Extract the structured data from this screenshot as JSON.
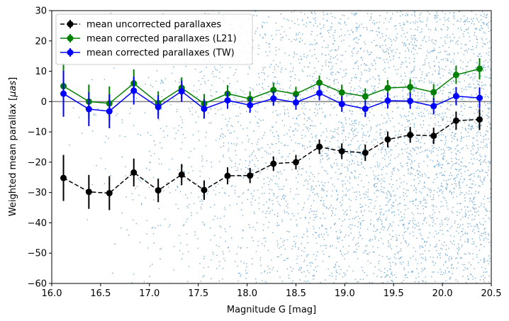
{
  "chart_data": {
    "type": "scatter",
    "xlabel": "Magnitude G [mag]",
    "ylabel_prefix": "Weighted mean parallax [",
    "ylabel_unit": "μas",
    "ylabel_suffix": "]",
    "xlim": [
      16.0,
      20.5
    ],
    "ylim": [
      -60,
      30
    ],
    "xticks": [
      16.0,
      16.5,
      17.0,
      17.5,
      18.0,
      18.5,
      19.0,
      19.5,
      20.0,
      20.5
    ],
    "xtick_labels": [
      "16.0",
      "16.5",
      "17.0",
      "17.5",
      "18.0",
      "18.5",
      "19.0",
      "19.5",
      "20.0",
      "20.5"
    ],
    "yticks": [
      -60,
      -50,
      -40,
      -30,
      -20,
      -10,
      0,
      10,
      20,
      30
    ],
    "ytick_labels": [
      "−60",
      "−50",
      "−40",
      "−30",
      "−20",
      "−10",
      "0",
      "10",
      "20",
      "30"
    ],
    "reference_line_y": 0,
    "x": [
      16.12,
      16.38,
      16.59,
      16.84,
      17.09,
      17.33,
      17.56,
      17.8,
      18.03,
      18.27,
      18.5,
      18.74,
      18.97,
      19.21,
      19.44,
      19.67,
      19.91,
      20.14,
      20.38
    ],
    "series": [
      {
        "name": "mean uncorrected parallaxes",
        "color": "#000000",
        "dashed": true,
        "values": [
          -25.2,
          -29.8,
          -30.2,
          -23.4,
          -29.3,
          -24.1,
          -29.2,
          -24.5,
          -24.4,
          -20.5,
          -20.0,
          -14.9,
          -16.4,
          -16.9,
          -12.5,
          -11.0,
          -11.3,
          -6.3,
          -5.9
        ],
        "errors": [
          7.6,
          5.6,
          5.6,
          4.6,
          3.9,
          3.5,
          3.2,
          2.8,
          2.5,
          2.4,
          2.4,
          2.4,
          2.6,
          2.7,
          2.6,
          2.6,
          2.7,
          3.0,
          3.5
        ]
      },
      {
        "name": "mean corrected parallaxes (L21)",
        "color": "#008000",
        "dashed": false,
        "values": [
          5.1,
          0.0,
          -0.6,
          6.0,
          -0.5,
          4.5,
          -0.7,
          2.6,
          0.9,
          3.8,
          2.5,
          6.2,
          3.0,
          1.7,
          4.5,
          4.8,
          3.1,
          8.8,
          10.8
        ],
        "errors": [
          7.6,
          5.6,
          5.6,
          4.6,
          3.9,
          3.5,
          3.2,
          2.8,
          2.5,
          2.4,
          2.4,
          2.4,
          2.6,
          2.7,
          2.6,
          2.6,
          2.7,
          3.0,
          3.5
        ]
      },
      {
        "name": "mean corrected parallaxes (TW)",
        "color": "#0000ff",
        "dashed": false,
        "values": [
          2.6,
          -2.5,
          -3.2,
          3.6,
          -1.8,
          3.4,
          -2.4,
          0.4,
          -1.2,
          1.0,
          -0.3,
          2.8,
          -0.8,
          -2.4,
          0.3,
          0.2,
          -1.5,
          1.8,
          1.2
        ],
        "errors": [
          7.6,
          5.6,
          5.6,
          4.6,
          3.9,
          3.5,
          3.2,
          2.8,
          2.5,
          2.4,
          2.4,
          2.4,
          2.6,
          2.7,
          2.6,
          2.6,
          2.7,
          3.0,
          3.5
        ]
      }
    ],
    "background_scatter": {
      "name": "individual source parallaxes",
      "color": "#1f77b4"
    },
    "legend_position": "top-left"
  }
}
